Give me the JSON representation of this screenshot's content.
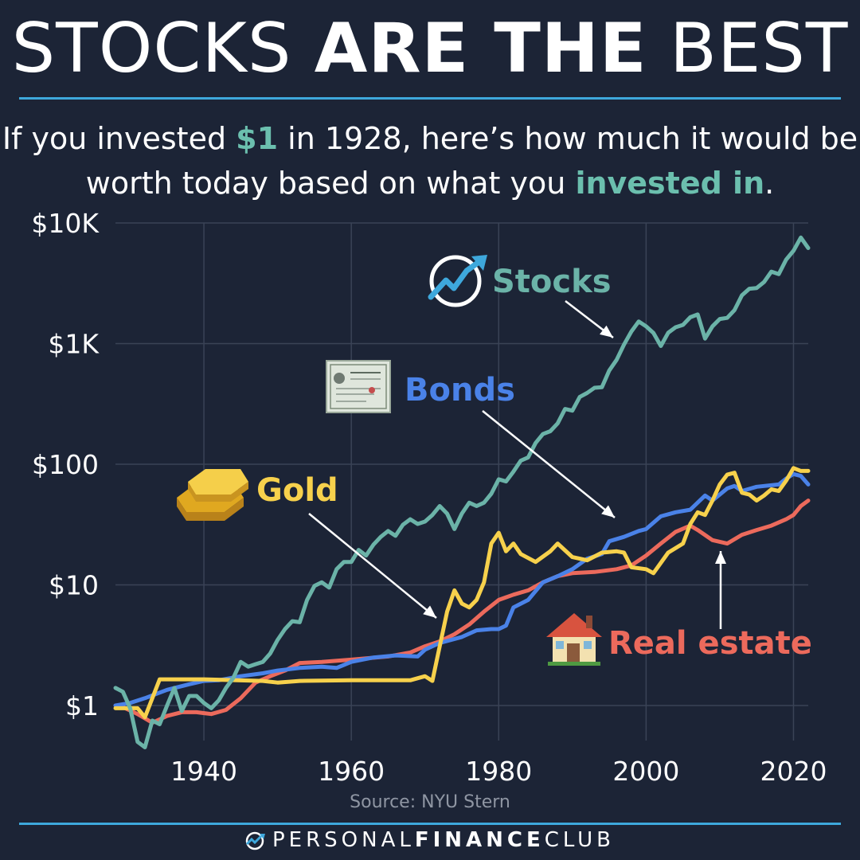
{
  "header": {
    "title_part1": "STOCKS ",
    "title_part2": "ARE THE",
    "title_part3": " BEST",
    "subtitle_a": "If you invested ",
    "subtitle_money": "$1",
    "subtitle_b": " in 1928, here’s how much it would be",
    "subtitle_c": "worth today based on what you ",
    "subtitle_teal": "invested in",
    "subtitle_d": "."
  },
  "source": "Source: NYU Stern",
  "footer": {
    "brand_light": "PERSONAL",
    "brand_bold": "FINANCE",
    "brand_end": "CLUB"
  },
  "colors": {
    "background": "#1c2436",
    "stocks": "#6bb3a8",
    "bonds": "#4a82e8",
    "gold": "#f7d14c",
    "real_estate": "#ec6a5c",
    "accent": "#3ea8dc"
  },
  "chart_data": {
    "type": "line",
    "title": "If you invested $1 in 1928, here’s how much it would be worth today based on what you invested in.",
    "xlabel": "",
    "ylabel": "",
    "y_scale": "log",
    "ylim": [
      0.3,
      10000
    ],
    "xlim": [
      1928,
      2022
    ],
    "x_ticks": [
      1940,
      1960,
      1980,
      2000,
      2020
    ],
    "y_ticks": [
      {
        "value": 1,
        "label": "$1"
      },
      {
        "value": 10,
        "label": "$10"
      },
      {
        "value": 100,
        "label": "$100"
      },
      {
        "value": 1000,
        "label": "$1K"
      },
      {
        "value": 10000,
        "label": "$10K"
      }
    ],
    "grid": true,
    "series": [
      {
        "name": "Stocks",
        "label": "Stocks",
        "color": "#6bb3a8",
        "points": [
          [
            1928,
            1.4
          ],
          [
            1929,
            1.3
          ],
          [
            1930,
            0.95
          ],
          [
            1931,
            0.5
          ],
          [
            1932,
            0.45
          ],
          [
            1933,
            0.75
          ],
          [
            1934,
            0.7
          ],
          [
            1935,
            1.0
          ],
          [
            1936,
            1.4
          ],
          [
            1937,
            0.9
          ],
          [
            1938,
            1.2
          ],
          [
            1939,
            1.2
          ],
          [
            1940,
            1.05
          ],
          [
            1941,
            0.95
          ],
          [
            1942,
            1.1
          ],
          [
            1943,
            1.4
          ],
          [
            1944,
            1.7
          ],
          [
            1945,
            2.3
          ],
          [
            1946,
            2.1
          ],
          [
            1947,
            2.2
          ],
          [
            1948,
            2.3
          ],
          [
            1949,
            2.7
          ],
          [
            1950,
            3.5
          ],
          [
            1951,
            4.3
          ],
          [
            1952,
            5.0
          ],
          [
            1953,
            4.9
          ],
          [
            1954,
            7.5
          ],
          [
            1955,
            9.8
          ],
          [
            1956,
            10.5
          ],
          [
            1957,
            9.5
          ],
          [
            1958,
            13.5
          ],
          [
            1959,
            15.5
          ],
          [
            1960,
            15.5
          ],
          [
            1961,
            19.5
          ],
          [
            1962,
            17.5
          ],
          [
            1963,
            21.5
          ],
          [
            1964,
            25.0
          ],
          [
            1965,
            28.0
          ],
          [
            1966,
            25.5
          ],
          [
            1967,
            31.5
          ],
          [
            1968,
            35.0
          ],
          [
            1969,
            32.0
          ],
          [
            1970,
            33.5
          ],
          [
            1971,
            38.0
          ],
          [
            1972,
            45.0
          ],
          [
            1973,
            39.0
          ],
          [
            1974,
            29.0
          ],
          [
            1975,
            39.0
          ],
          [
            1976,
            48.0
          ],
          [
            1977,
            45.0
          ],
          [
            1978,
            48.0
          ],
          [
            1979,
            57.0
          ],
          [
            1980,
            75.0
          ],
          [
            1981,
            72.0
          ],
          [
            1982,
            87.0
          ],
          [
            1983,
            107.0
          ],
          [
            1984,
            114.0
          ],
          [
            1985,
            150.0
          ],
          [
            1986,
            178.0
          ],
          [
            1987,
            188.0
          ],
          [
            1988,
            218.0
          ],
          [
            1989,
            287.0
          ],
          [
            1990,
            278.0
          ],
          [
            1991,
            362.0
          ],
          [
            1992,
            390.0
          ],
          [
            1993,
            430.0
          ],
          [
            1994,
            435.0
          ],
          [
            1995,
            598.0
          ],
          [
            1996,
            735.0
          ],
          [
            1997,
            980.0
          ],
          [
            1998,
            1260.0
          ],
          [
            1999,
            1525.0
          ],
          [
            2000,
            1390.0
          ],
          [
            2001,
            1225.0
          ],
          [
            2002,
            955.0
          ],
          [
            2003,
            1230.0
          ],
          [
            2004,
            1365.0
          ],
          [
            2005,
            1430.0
          ],
          [
            2006,
            1655.0
          ],
          [
            2007,
            1745.0
          ],
          [
            2008,
            1100.0
          ],
          [
            2009,
            1390.0
          ],
          [
            2010,
            1600.0
          ],
          [
            2011,
            1635.0
          ],
          [
            2012,
            1895.0
          ],
          [
            2013,
            2510.0
          ],
          [
            2014,
            2850.0
          ],
          [
            2015,
            2890.0
          ],
          [
            2016,
            3240.0
          ],
          [
            2017,
            3950.0
          ],
          [
            2018,
            3770.0
          ],
          [
            2019,
            4960.0
          ],
          [
            2020,
            5880.0
          ],
          [
            2021,
            7570.0
          ],
          [
            2022,
            6200.0
          ]
        ]
      },
      {
        "name": "Bonds",
        "label": "Bonds",
        "color": "#4a82e8",
        "points": [
          [
            1928,
            1.0
          ],
          [
            1930,
            1.05
          ],
          [
            1932,
            1.15
          ],
          [
            1935,
            1.35
          ],
          [
            1938,
            1.5
          ],
          [
            1940,
            1.6
          ],
          [
            1942,
            1.62
          ],
          [
            1945,
            1.75
          ],
          [
            1948,
            1.85
          ],
          [
            1950,
            1.95
          ],
          [
            1953,
            2.05
          ],
          [
            1956,
            2.1
          ],
          [
            1958,
            2.05
          ],
          [
            1960,
            2.3
          ],
          [
            1963,
            2.5
          ],
          [
            1966,
            2.6
          ],
          [
            1969,
            2.55
          ],
          [
            1970,
            2.9
          ],
          [
            1972,
            3.3
          ],
          [
            1975,
            3.7
          ],
          [
            1977,
            4.2
          ],
          [
            1979,
            4.3
          ],
          [
            1980,
            4.3
          ],
          [
            1981,
            4.6
          ],
          [
            1982,
            6.5
          ],
          [
            1984,
            7.5
          ],
          [
            1986,
            10.5
          ],
          [
            1988,
            11.8
          ],
          [
            1990,
            13.5
          ],
          [
            1992,
            16.5
          ],
          [
            1994,
            18.0
          ],
          [
            1995,
            23.0
          ],
          [
            1997,
            25.0
          ],
          [
            1999,
            28.0
          ],
          [
            2000,
            29.0
          ],
          [
            2002,
            37.0
          ],
          [
            2004,
            40.0
          ],
          [
            2006,
            42.0
          ],
          [
            2008,
            55.0
          ],
          [
            2009,
            50.0
          ],
          [
            2011,
            63.0
          ],
          [
            2012,
            66.0
          ],
          [
            2013,
            60.0
          ],
          [
            2015,
            65.0
          ],
          [
            2018,
            68.0
          ],
          [
            2019,
            76.0
          ],
          [
            2020,
            83.0
          ],
          [
            2021,
            80.0
          ],
          [
            2022,
            68.0
          ]
        ]
      },
      {
        "name": "Gold",
        "label": "Gold",
        "color": "#f7d14c",
        "points": [
          [
            1928,
            0.95
          ],
          [
            1931,
            0.95
          ],
          [
            1932,
            0.8
          ],
          [
            1934,
            1.65
          ],
          [
            1940,
            1.65
          ],
          [
            1948,
            1.6
          ],
          [
            1950,
            1.55
          ],
          [
            1953,
            1.6
          ],
          [
            1960,
            1.62
          ],
          [
            1965,
            1.62
          ],
          [
            1968,
            1.62
          ],
          [
            1970,
            1.75
          ],
          [
            1971,
            1.6
          ],
          [
            1972,
            3.1
          ],
          [
            1973,
            6.0
          ],
          [
            1974,
            9.0
          ],
          [
            1975,
            7.0
          ],
          [
            1976,
            6.5
          ],
          [
            1977,
            7.5
          ],
          [
            1978,
            10.5
          ],
          [
            1979,
            22.0
          ],
          [
            1980,
            27.0
          ],
          [
            1981,
            19.0
          ],
          [
            1982,
            22.0
          ],
          [
            1983,
            18.0
          ],
          [
            1985,
            15.5
          ],
          [
            1987,
            19.0
          ],
          [
            1988,
            22.0
          ],
          [
            1990,
            17.0
          ],
          [
            1992,
            16.0
          ],
          [
            1994,
            18.5
          ],
          [
            1996,
            19.0
          ],
          [
            1997,
            18.5
          ],
          [
            1998,
            14.0
          ],
          [
            2000,
            13.5
          ],
          [
            2001,
            12.5
          ],
          [
            2003,
            18.5
          ],
          [
            2005,
            22.0
          ],
          [
            2006,
            32.0
          ],
          [
            2007,
            40.0
          ],
          [
            2008,
            38.0
          ],
          [
            2009,
            50.0
          ],
          [
            2010,
            68.0
          ],
          [
            2011,
            82.0
          ],
          [
            2012,
            85.0
          ],
          [
            2013,
            58.0
          ],
          [
            2014,
            56.0
          ],
          [
            2015,
            50.0
          ],
          [
            2016,
            55.0
          ],
          [
            2017,
            62.0
          ],
          [
            2018,
            60.0
          ],
          [
            2019,
            73.0
          ],
          [
            2020,
            93.0
          ],
          [
            2021,
            88.0
          ],
          [
            2022,
            88.0
          ]
        ]
      },
      {
        "name": "Real estate",
        "label": "Real estate",
        "color": "#ec6a5c",
        "points": [
          [
            1928,
            1.0
          ],
          [
            1929,
            0.97
          ],
          [
            1931,
            0.85
          ],
          [
            1933,
            0.72
          ],
          [
            1935,
            0.82
          ],
          [
            1937,
            0.88
          ],
          [
            1939,
            0.88
          ],
          [
            1941,
            0.85
          ],
          [
            1943,
            0.92
          ],
          [
            1945,
            1.15
          ],
          [
            1947,
            1.55
          ],
          [
            1949,
            1.75
          ],
          [
            1951,
            1.95
          ],
          [
            1953,
            2.25
          ],
          [
            1956,
            2.3
          ],
          [
            1960,
            2.4
          ],
          [
            1965,
            2.55
          ],
          [
            1968,
            2.75
          ],
          [
            1970,
            3.1
          ],
          [
            1972,
            3.4
          ],
          [
            1974,
            3.9
          ],
          [
            1976,
            4.7
          ],
          [
            1978,
            6.0
          ],
          [
            1980,
            7.5
          ],
          [
            1982,
            8.3
          ],
          [
            1984,
            9.0
          ],
          [
            1986,
            10.5
          ],
          [
            1988,
            11.8
          ],
          [
            1990,
            12.5
          ],
          [
            1993,
            12.8
          ],
          [
            1996,
            13.5
          ],
          [
            1998,
            14.5
          ],
          [
            2000,
            17.5
          ],
          [
            2002,
            22.0
          ],
          [
            2004,
            27.5
          ],
          [
            2006,
            31.0
          ],
          [
            2007,
            28.5
          ],
          [
            2009,
            23.5
          ],
          [
            2011,
            22.0
          ],
          [
            2013,
            26.0
          ],
          [
            2015,
            28.5
          ],
          [
            2017,
            31.0
          ],
          [
            2019,
            35.0
          ],
          [
            2020,
            38.0
          ],
          [
            2021,
            45.0
          ],
          [
            2022,
            50.0
          ]
        ]
      }
    ],
    "annotations": [
      {
        "text": "Stocks",
        "series": "Stocks"
      },
      {
        "text": "Bonds",
        "series": "Bonds"
      },
      {
        "text": "Gold",
        "series": "Gold"
      },
      {
        "text": "Real estate",
        "series": "Real estate"
      }
    ]
  }
}
